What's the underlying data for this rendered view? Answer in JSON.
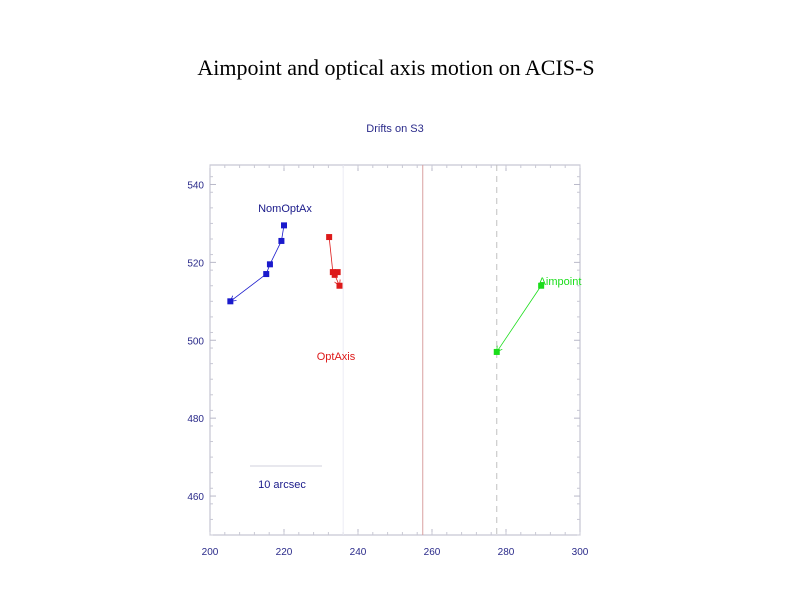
{
  "slide": {
    "title": "Aimpoint  and optical axis motion on ACIS-S"
  },
  "chart_data": {
    "type": "scatter",
    "title": "Drifts on S3",
    "xlabel": "",
    "ylabel": "",
    "xlim": [
      200,
      300
    ],
    "ylim": [
      450,
      545
    ],
    "x_ticks": [
      200,
      220,
      240,
      260,
      280,
      300
    ],
    "x_tick_labels": [
      "200",
      "220",
      "240",
      "260",
      "280",
      "300"
    ],
    "y_ticks": [
      460,
      480,
      500,
      520,
      540
    ],
    "y_tick_labels": [
      "460",
      "480",
      "500",
      "520",
      "540"
    ],
    "grid": false,
    "series": [
      {
        "name": "NomOptAx",
        "color": "#1a1acc",
        "points": [
          [
            220,
            529.5
          ],
          [
            219.3,
            525.5
          ],
          [
            216.2,
            519.5
          ],
          [
            215.2,
            517
          ],
          [
            205.5,
            510
          ]
        ]
      },
      {
        "name": "OptAxis",
        "color": "#dd1a1a",
        "points": [
          [
            232.2,
            526.5
          ],
          [
            233.2,
            517.5
          ],
          [
            234.5,
            517.5
          ],
          [
            233.7,
            516.8
          ],
          [
            235,
            514
          ]
        ]
      },
      {
        "name": "Aimpoint",
        "color": "#1add1a",
        "points": [
          [
            289.5,
            514
          ],
          [
            277.5,
            497
          ]
        ]
      }
    ],
    "vertical_lines": [
      {
        "x": 257.5,
        "style": "solid",
        "color": "#d9a0a0"
      },
      {
        "x": 277.5,
        "style": "dashed",
        "color": "#c0c0c0"
      }
    ],
    "annotations": [
      {
        "text": "NomOptAx",
        "color": "#1a1a8a"
      },
      {
        "text": "OptAxis",
        "color": "#dd1a1a"
      },
      {
        "text": "Aimpoint",
        "color": "#1add1a"
      },
      {
        "text": "10 arcsec",
        "color": "#1a1a8a"
      }
    ]
  }
}
